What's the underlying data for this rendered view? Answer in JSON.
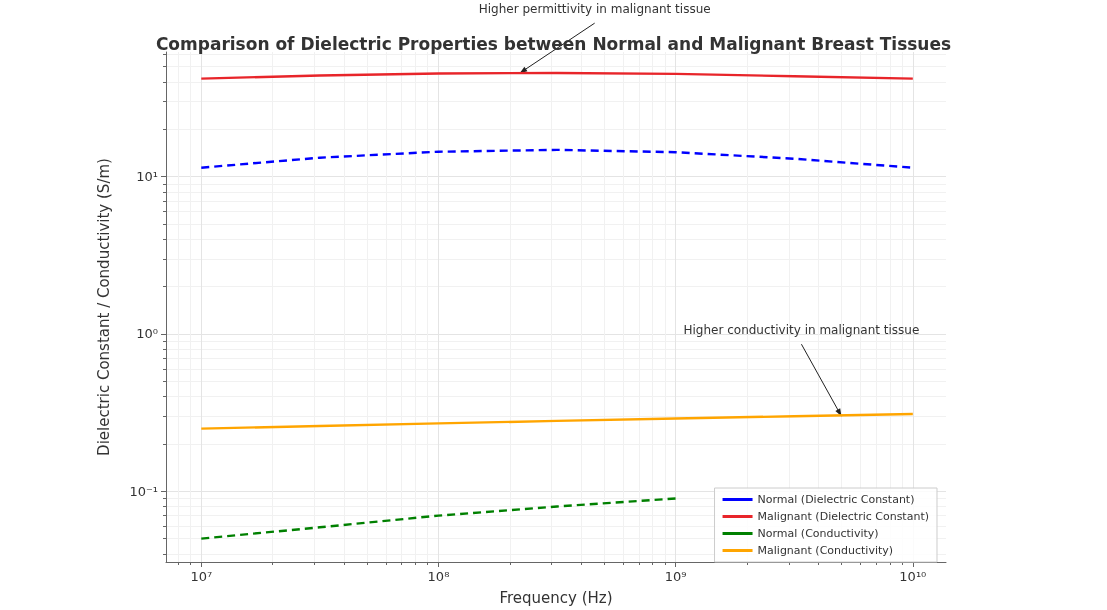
{
  "chart_data": {
    "type": "line",
    "title": "Comparison of Dielectric Properties between Normal and Malignant Breast Tissues",
    "xlabel": "Frequency (Hz)",
    "ylabel": "Dielectric Constant / Conductivity (S/m)",
    "x": [
      10000000,
      31600000,
      100000000,
      316000000,
      1000000000,
      3160000000,
      10000000000
    ],
    "series": [
      {
        "name": "Normal (Dielectric Constant)",
        "color": "#0000ff",
        "line_style": "dashed",
        "values": [
          11.4,
          13.2,
          14.4,
          14.8,
          14.3,
          13.0,
          11.4
        ]
      },
      {
        "name": "Malignant (Dielectric Constant)",
        "color": "#e8252a",
        "line_style": "solid",
        "values": [
          42,
          44,
          45.3,
          45.6,
          45,
          43.5,
          42
        ]
      },
      {
        "name": "Normal (Conductivity)",
        "color": "#008000",
        "line_style": "dashed",
        "values": [
          0.05,
          0.059,
          0.07,
          0.08,
          0.09,
          null,
          null
        ]
      },
      {
        "name": "Malignant (Conductivity)",
        "color": "#ffa500",
        "line_style": "solid",
        "values": [
          0.25,
          0.26,
          0.27,
          0.28,
          0.29,
          0.3,
          0.31
        ]
      }
    ],
    "log": "xy",
    "xlim": [
      7100000,
      13800000000
    ],
    "ylim": [
      0.0355,
      62
    ],
    "xticks": [
      {
        "value": 10000000,
        "label": "10⁷"
      },
      {
        "value": 100000000,
        "label": "10⁸"
      },
      {
        "value": 1000000000,
        "label": "10⁹"
      },
      {
        "value": 10000000000,
        "label": "10¹⁰"
      }
    ],
    "yticks": [
      {
        "value": 0.1,
        "label": "10⁻¹"
      },
      {
        "value": 1,
        "label": "10⁰"
      },
      {
        "value": 10,
        "label": "10¹"
      }
    ],
    "grid": true,
    "legend": "bottom right",
    "marker": "none",
    "annotations": [
      {
        "text": "Higher permittivity in malignant tissue",
        "x": 220000000,
        "y": 45.5
      },
      {
        "text": "Higher conductivity in malignant tissue",
        "x": 5000000000,
        "y": 0.3
      }
    ]
  }
}
